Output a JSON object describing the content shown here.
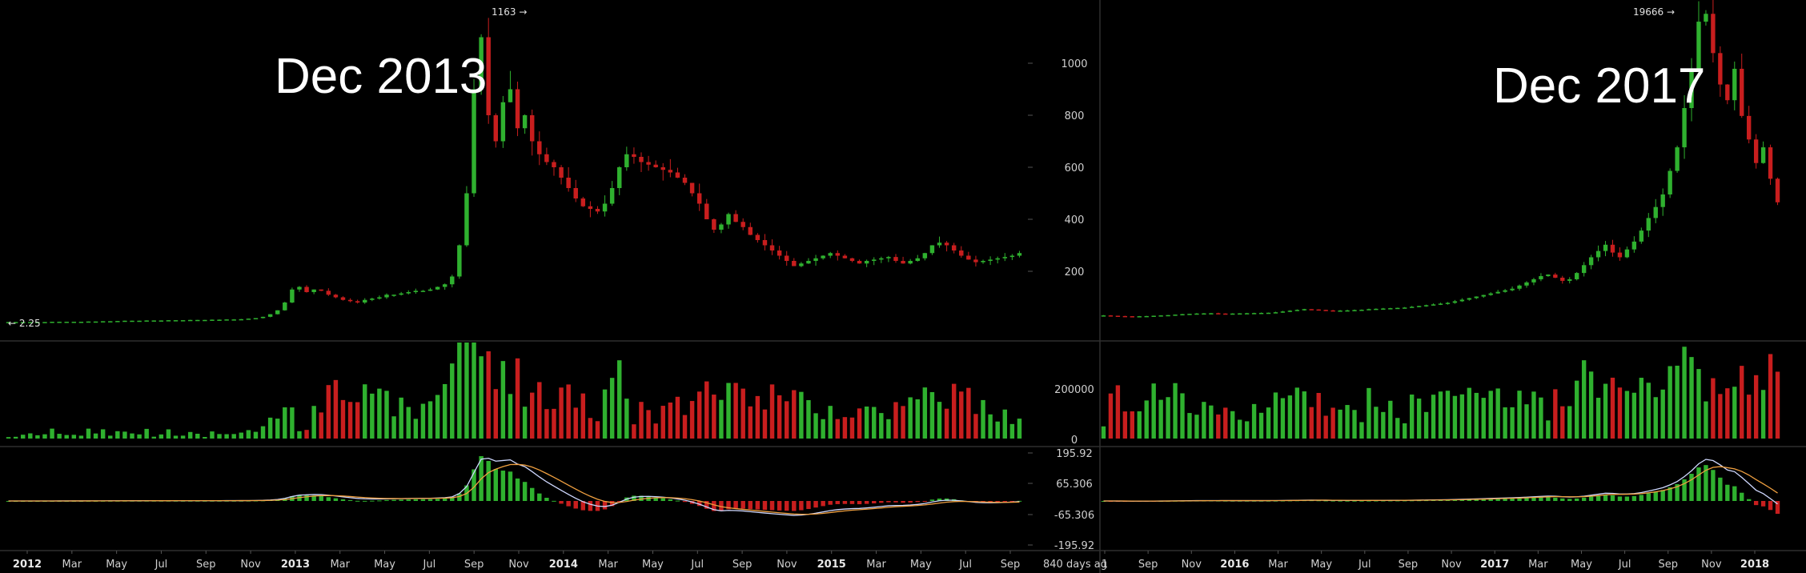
{
  "chart_data": [
    {
      "type": "candlestick",
      "title": "",
      "annotation": "Dec 2013",
      "price_axis": {
        "ticks": [
          200,
          400,
          600,
          800,
          1000
        ],
        "ylim": [
          0,
          1200
        ]
      },
      "volume_axis": {
        "ticks": [],
        "ylim": [
          0,
          200000
        ]
      },
      "macd_axis": {
        "ticks": [
          "195.92",
          "65.306",
          "-65.306",
          "-195.92"
        ],
        "ylim": [
          -195.92,
          195.92
        ]
      },
      "high_marker": {
        "label": "1163",
        "value": 1163
      },
      "low_marker": {
        "label": "2.25",
        "value": 2.25
      },
      "x_labels": [
        "2012",
        "Mar",
        "May",
        "Jul",
        "Sep",
        "Nov",
        "2013",
        "Mar",
        "May",
        "Jul",
        "Sep",
        "Nov",
        "2014",
        "Mar",
        "May",
        "Jul",
        "Sep",
        "Nov",
        "2015",
        "Mar",
        "May",
        "Jul",
        "Sep"
      ],
      "x_labels_bold": [
        "2012",
        "2013",
        "2014",
        "2015"
      ],
      "corner_text": "840 days ag",
      "close": [
        5,
        5,
        5,
        5,
        5,
        5,
        6,
        6,
        6,
        6,
        6,
        7,
        7,
        8,
        8,
        9,
        10,
        10,
        10,
        11,
        11,
        11,
        12,
        12,
        12,
        13,
        13,
        13,
        14,
        14,
        15,
        15,
        16,
        18,
        20,
        25,
        35,
        50,
        80,
        130,
        140,
        120,
        130,
        125,
        110,
        100,
        90,
        85,
        80,
        90,
        95,
        100,
        110,
        110,
        115,
        120,
        125,
        125,
        130,
        140,
        150,
        180,
        300,
        500,
        900,
        1100,
        800,
        700,
        850,
        900,
        750,
        800,
        700,
        650,
        620,
        600,
        560,
        520,
        480,
        450,
        440,
        430,
        460,
        520,
        600,
        650,
        640,
        620,
        610,
        600,
        590,
        580,
        560,
        540,
        500,
        460,
        400,
        360,
        380,
        420,
        390,
        370,
        340,
        320,
        300,
        280,
        260,
        240,
        220,
        230,
        240,
        250,
        260,
        270,
        260,
        250,
        240,
        230,
        240,
        245,
        250,
        255,
        240,
        230,
        240,
        250,
        270,
        300,
        310,
        300,
        280,
        260,
        245,
        235,
        240,
        245,
        250,
        255,
        260,
        270
      ]
    },
    {
      "type": "candlestick",
      "title": "",
      "annotation": "Dec 2017",
      "price_axis": {
        "ticks": [],
        "ylim": [
          0,
          19666
        ]
      },
      "volume_axis": {
        "ticks": [
          "200000",
          "0"
        ],
        "ylim": [
          0,
          200000
        ]
      },
      "macd_axis": {
        "ticks": [],
        "ylim": [
          -1,
          1
        ]
      },
      "high_marker": {
        "label": "19666",
        "value": 19666
      },
      "x_labels": [
        "1",
        "Sep",
        "Nov",
        "2016",
        "Mar",
        "May",
        "Jul",
        "Sep",
        "Nov",
        "2017",
        "Mar",
        "May",
        "Jul",
        "Sep",
        "Nov",
        "2018"
      ],
      "x_labels_bold": [
        "2016",
        "2017",
        "2018"
      ],
      "close": [
        300,
        280,
        260,
        250,
        240,
        250,
        260,
        280,
        300,
        320,
        350,
        380,
        400,
        420,
        430,
        440,
        420,
        410,
        420,
        430,
        440,
        450,
        460,
        470,
        500,
        550,
        600,
        650,
        700,
        680,
        650,
        620,
        600,
        610,
        620,
        640,
        660,
        700,
        720,
        740,
        760,
        780,
        800,
        850,
        900,
        950,
        1000,
        1050,
        1100,
        1200,
        1300,
        1400,
        1500,
        1600,
        1700,
        1800,
        1900,
        2000,
        2200,
        2400,
        2600,
        2800,
        2900,
        2700,
        2500,
        2600,
        3000,
        3500,
        4000,
        4400,
        4800,
        4300,
        4000,
        4500,
        5000,
        5700,
        6500,
        7200,
        8000,
        9500,
        11000,
        13500,
        16000,
        19000,
        19500,
        17000,
        15000,
        14000,
        16000,
        13000,
        11500,
        10000,
        11000,
        9000,
        7500
      ]
    }
  ]
}
